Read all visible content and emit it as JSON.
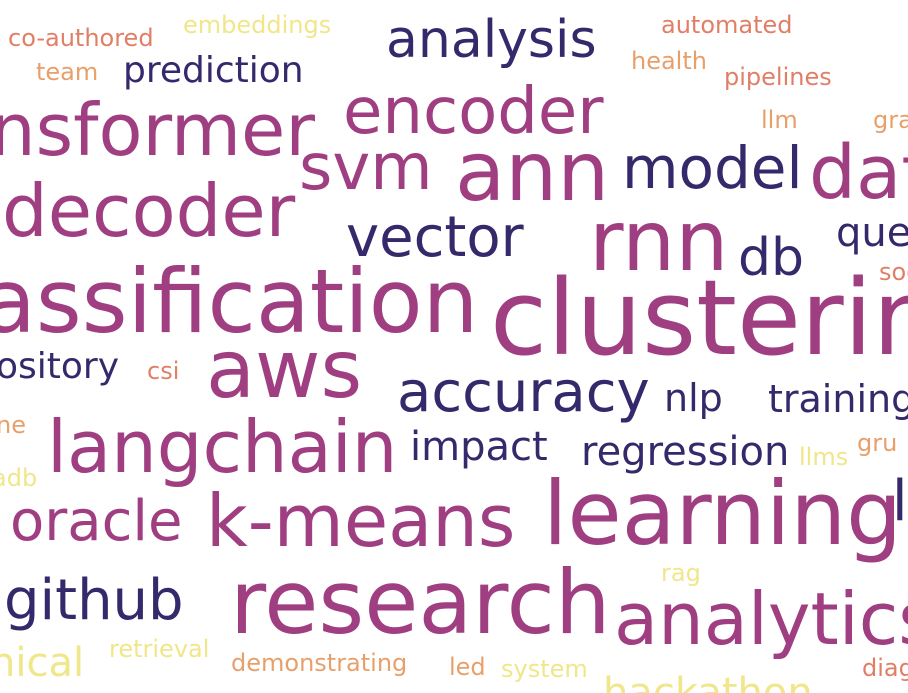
{
  "palette": {
    "navy": "#36296b",
    "magenta": "#a03e82",
    "salmon": "#e17f66",
    "orange": "#e8a06b",
    "yellow": "#f0e68a"
  },
  "words": [
    {
      "text": "embeddings",
      "color": "yellow"
    },
    {
      "text": "automated",
      "color": "salmon"
    },
    {
      "text": "co-authored",
      "color": "salmon"
    },
    {
      "text": "analysis",
      "color": "navy"
    },
    {
      "text": "health",
      "color": "orange"
    },
    {
      "text": "team",
      "color": "orange"
    },
    {
      "text": "prediction",
      "color": "navy"
    },
    {
      "text": "pipelines",
      "color": "salmon"
    },
    {
      "text": "encoder",
      "color": "magenta"
    },
    {
      "text": "llm",
      "color": "orange"
    },
    {
      "text": "gra",
      "color": "orange"
    },
    {
      "text": "nsformer",
      "color": "magenta"
    },
    {
      "text": "svm",
      "color": "magenta"
    },
    {
      "text": "ann",
      "color": "magenta"
    },
    {
      "text": "model",
      "color": "navy"
    },
    {
      "text": "dat",
      "color": "magenta"
    },
    {
      "text": "decoder",
      "color": "magenta"
    },
    {
      "text": "vector",
      "color": "navy"
    },
    {
      "text": "rnn",
      "color": "magenta"
    },
    {
      "text": "que",
      "color": "navy"
    },
    {
      "text": "db",
      "color": "navy"
    },
    {
      "text": "soc",
      "color": "salmon"
    },
    {
      "text": "assification",
      "color": "magenta"
    },
    {
      "text": "clusterin",
      "color": "magenta"
    },
    {
      "text": "aws",
      "color": "magenta"
    },
    {
      "text": "ository",
      "color": "navy"
    },
    {
      "text": "csi",
      "color": "salmon"
    },
    {
      "text": "accuracy",
      "color": "navy"
    },
    {
      "text": "nlp",
      "color": "navy"
    },
    {
      "text": "training",
      "color": "navy"
    },
    {
      "text": "ne",
      "color": "orange"
    },
    {
      "text": "langchain",
      "color": "magenta"
    },
    {
      "text": "impact",
      "color": "navy"
    },
    {
      "text": "regression",
      "color": "navy"
    },
    {
      "text": "gru",
      "color": "orange"
    },
    {
      "text": "llms",
      "color": "yellow"
    },
    {
      "text": "adb",
      "color": "yellow"
    },
    {
      "text": "learning",
      "color": "magenta"
    },
    {
      "text": "l",
      "color": "navy"
    },
    {
      "text": "oracle",
      "color": "magenta"
    },
    {
      "text": "k-means",
      "color": "magenta"
    },
    {
      "text": "rag",
      "color": "yellow"
    },
    {
      "text": "github",
      "color": "navy"
    },
    {
      "text": "research",
      "color": "magenta"
    },
    {
      "text": "analytics",
      "color": "magenta"
    },
    {
      "text": "retrieval",
      "color": "yellow"
    },
    {
      "text": "nical",
      "color": "yellow"
    },
    {
      "text": "demonstrating",
      "color": "orange"
    },
    {
      "text": "led",
      "color": "orange"
    },
    {
      "text": "system",
      "color": "yellow"
    },
    {
      "text": "diag",
      "color": "salmon"
    },
    {
      "text": "hackathon",
      "color": "yellow"
    }
  ]
}
